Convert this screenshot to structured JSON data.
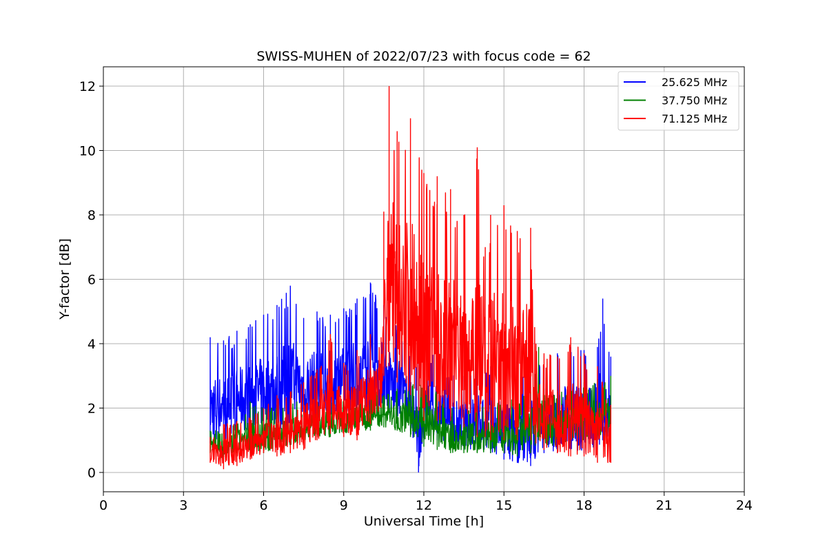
{
  "chart_data": {
    "type": "line",
    "title": "SWISS-MUHEN of 2022/07/23 with focus code = 62",
    "xlabel": "Universal Time [h]",
    "ylabel": "Y-factor [dB]",
    "xlim": [
      0,
      24
    ],
    "ylim": [
      -0.6,
      12.6
    ],
    "xticks": [
      0,
      3,
      6,
      9,
      12,
      15,
      18,
      21,
      24
    ],
    "yticks": [
      0,
      2,
      4,
      6,
      8,
      10,
      12
    ],
    "grid": true,
    "legend_position": "top-right",
    "series": [
      {
        "name": "25.625 MHz",
        "color": "#0000ff",
        "envelope": [
          [
            4.0,
            0.9,
            4.2
          ],
          [
            4.5,
            1.0,
            4.1
          ],
          [
            5.0,
            1.1,
            4.4
          ],
          [
            5.5,
            1.1,
            4.6
          ],
          [
            6.0,
            1.2,
            4.9
          ],
          [
            6.5,
            1.2,
            5.2
          ],
          [
            7.0,
            1.3,
            5.8
          ],
          [
            7.5,
            1.5,
            4.8
          ],
          [
            8.0,
            1.6,
            5.0
          ],
          [
            8.5,
            1.7,
            4.9
          ],
          [
            9.0,
            1.7,
            5.1
          ],
          [
            9.5,
            1.8,
            5.4
          ],
          [
            10.0,
            1.8,
            5.9
          ],
          [
            10.5,
            1.9,
            5.2
          ],
          [
            11.0,
            1.7,
            4.6
          ],
          [
            11.5,
            1.3,
            3.7
          ],
          [
            11.8,
            0.0,
            3.4
          ],
          [
            12.0,
            1.0,
            3.5
          ],
          [
            12.5,
            1.0,
            3.8
          ],
          [
            13.0,
            0.8,
            3.1
          ],
          [
            13.5,
            0.7,
            3.0
          ],
          [
            14.0,
            0.7,
            3.4
          ],
          [
            14.5,
            0.6,
            3.3
          ],
          [
            15.0,
            0.4,
            3.2
          ],
          [
            15.5,
            0.3,
            3.2
          ],
          [
            16.0,
            0.2,
            3.6
          ],
          [
            16.5,
            0.6,
            3.3
          ],
          [
            17.0,
            0.6,
            3.7
          ],
          [
            17.5,
            0.7,
            3.9
          ],
          [
            18.0,
            0.6,
            3.8
          ],
          [
            18.5,
            0.7,
            3.9
          ],
          [
            18.7,
            1.0,
            5.4
          ],
          [
            19.0,
            0.7,
            3.6
          ]
        ]
      },
      {
        "name": "37.750 MHz",
        "color": "#008000",
        "envelope": [
          [
            4.0,
            0.6,
            1.3
          ],
          [
            4.5,
            0.4,
            1.3
          ],
          [
            5.0,
            0.6,
            1.6
          ],
          [
            5.5,
            0.6,
            2.2
          ],
          [
            6.0,
            0.6,
            2.0
          ],
          [
            6.5,
            0.7,
            2.1
          ],
          [
            7.0,
            0.8,
            2.1
          ],
          [
            7.5,
            1.0,
            2.3
          ],
          [
            8.0,
            1.1,
            2.3
          ],
          [
            8.5,
            1.1,
            2.3
          ],
          [
            9.0,
            1.2,
            2.3
          ],
          [
            9.5,
            1.3,
            2.6
          ],
          [
            10.0,
            1.3,
            2.7
          ],
          [
            10.5,
            1.4,
            2.4
          ],
          [
            11.0,
            1.3,
            2.6
          ],
          [
            11.5,
            1.1,
            2.8
          ],
          [
            12.0,
            0.8,
            2.7
          ],
          [
            12.5,
            0.7,
            2.6
          ],
          [
            13.0,
            0.6,
            2.0
          ],
          [
            13.5,
            0.6,
            2.0
          ],
          [
            14.0,
            0.6,
            2.1
          ],
          [
            14.5,
            0.6,
            2.1
          ],
          [
            15.0,
            0.6,
            2.2
          ],
          [
            15.5,
            0.5,
            2.3
          ],
          [
            16.0,
            0.6,
            2.5
          ],
          [
            16.3,
            1.0,
            3.9
          ],
          [
            16.5,
            0.8,
            2.6
          ],
          [
            17.0,
            0.8,
            2.5
          ],
          [
            17.5,
            0.9,
            2.6
          ],
          [
            18.0,
            1.0,
            2.8
          ],
          [
            18.5,
            1.0,
            2.9
          ],
          [
            19.0,
            1.1,
            3.0
          ]
        ]
      },
      {
        "name": "71.125 MHz",
        "color": "#ff0000",
        "envelope": [
          [
            4.0,
            0.3,
            1.1
          ],
          [
            4.5,
            0.1,
            1.5
          ],
          [
            5.0,
            0.2,
            1.6
          ],
          [
            5.5,
            0.4,
            1.7
          ],
          [
            6.0,
            0.6,
            2.0
          ],
          [
            6.5,
            0.5,
            2.4
          ],
          [
            7.0,
            0.6,
            2.5
          ],
          [
            7.5,
            0.7,
            2.8
          ],
          [
            8.0,
            1.0,
            3.2
          ],
          [
            8.5,
            1.2,
            4.3
          ],
          [
            9.0,
            1.1,
            3.4
          ],
          [
            9.5,
            1.0,
            3.8
          ],
          [
            10.0,
            1.5,
            4.3
          ],
          [
            10.4,
            2.0,
            4.2
          ],
          [
            10.5,
            3.0,
            8.1
          ],
          [
            10.7,
            3.3,
            12.0
          ],
          [
            11.0,
            2.8,
            10.6
          ],
          [
            11.5,
            2.4,
            11.0
          ],
          [
            12.0,
            1.6,
            9.3
          ],
          [
            12.5,
            1.6,
            9.2
          ],
          [
            13.0,
            1.6,
            8.8
          ],
          [
            13.5,
            1.4,
            8.0
          ],
          [
            14.0,
            1.1,
            10.1
          ],
          [
            14.3,
            1.1,
            7.0
          ],
          [
            14.5,
            1.0,
            8.0
          ],
          [
            15.0,
            1.0,
            8.3
          ],
          [
            15.5,
            1.0,
            7.5
          ],
          [
            16.0,
            1.0,
            7.6
          ],
          [
            16.2,
            0.9,
            4.0
          ],
          [
            16.5,
            0.7,
            3.7
          ],
          [
            17.0,
            0.6,
            3.6
          ],
          [
            17.5,
            0.5,
            4.2
          ],
          [
            18.0,
            0.5,
            3.7
          ],
          [
            18.5,
            0.3,
            3.3
          ],
          [
            19.0,
            0.3,
            2.1
          ]
        ]
      }
    ]
  }
}
